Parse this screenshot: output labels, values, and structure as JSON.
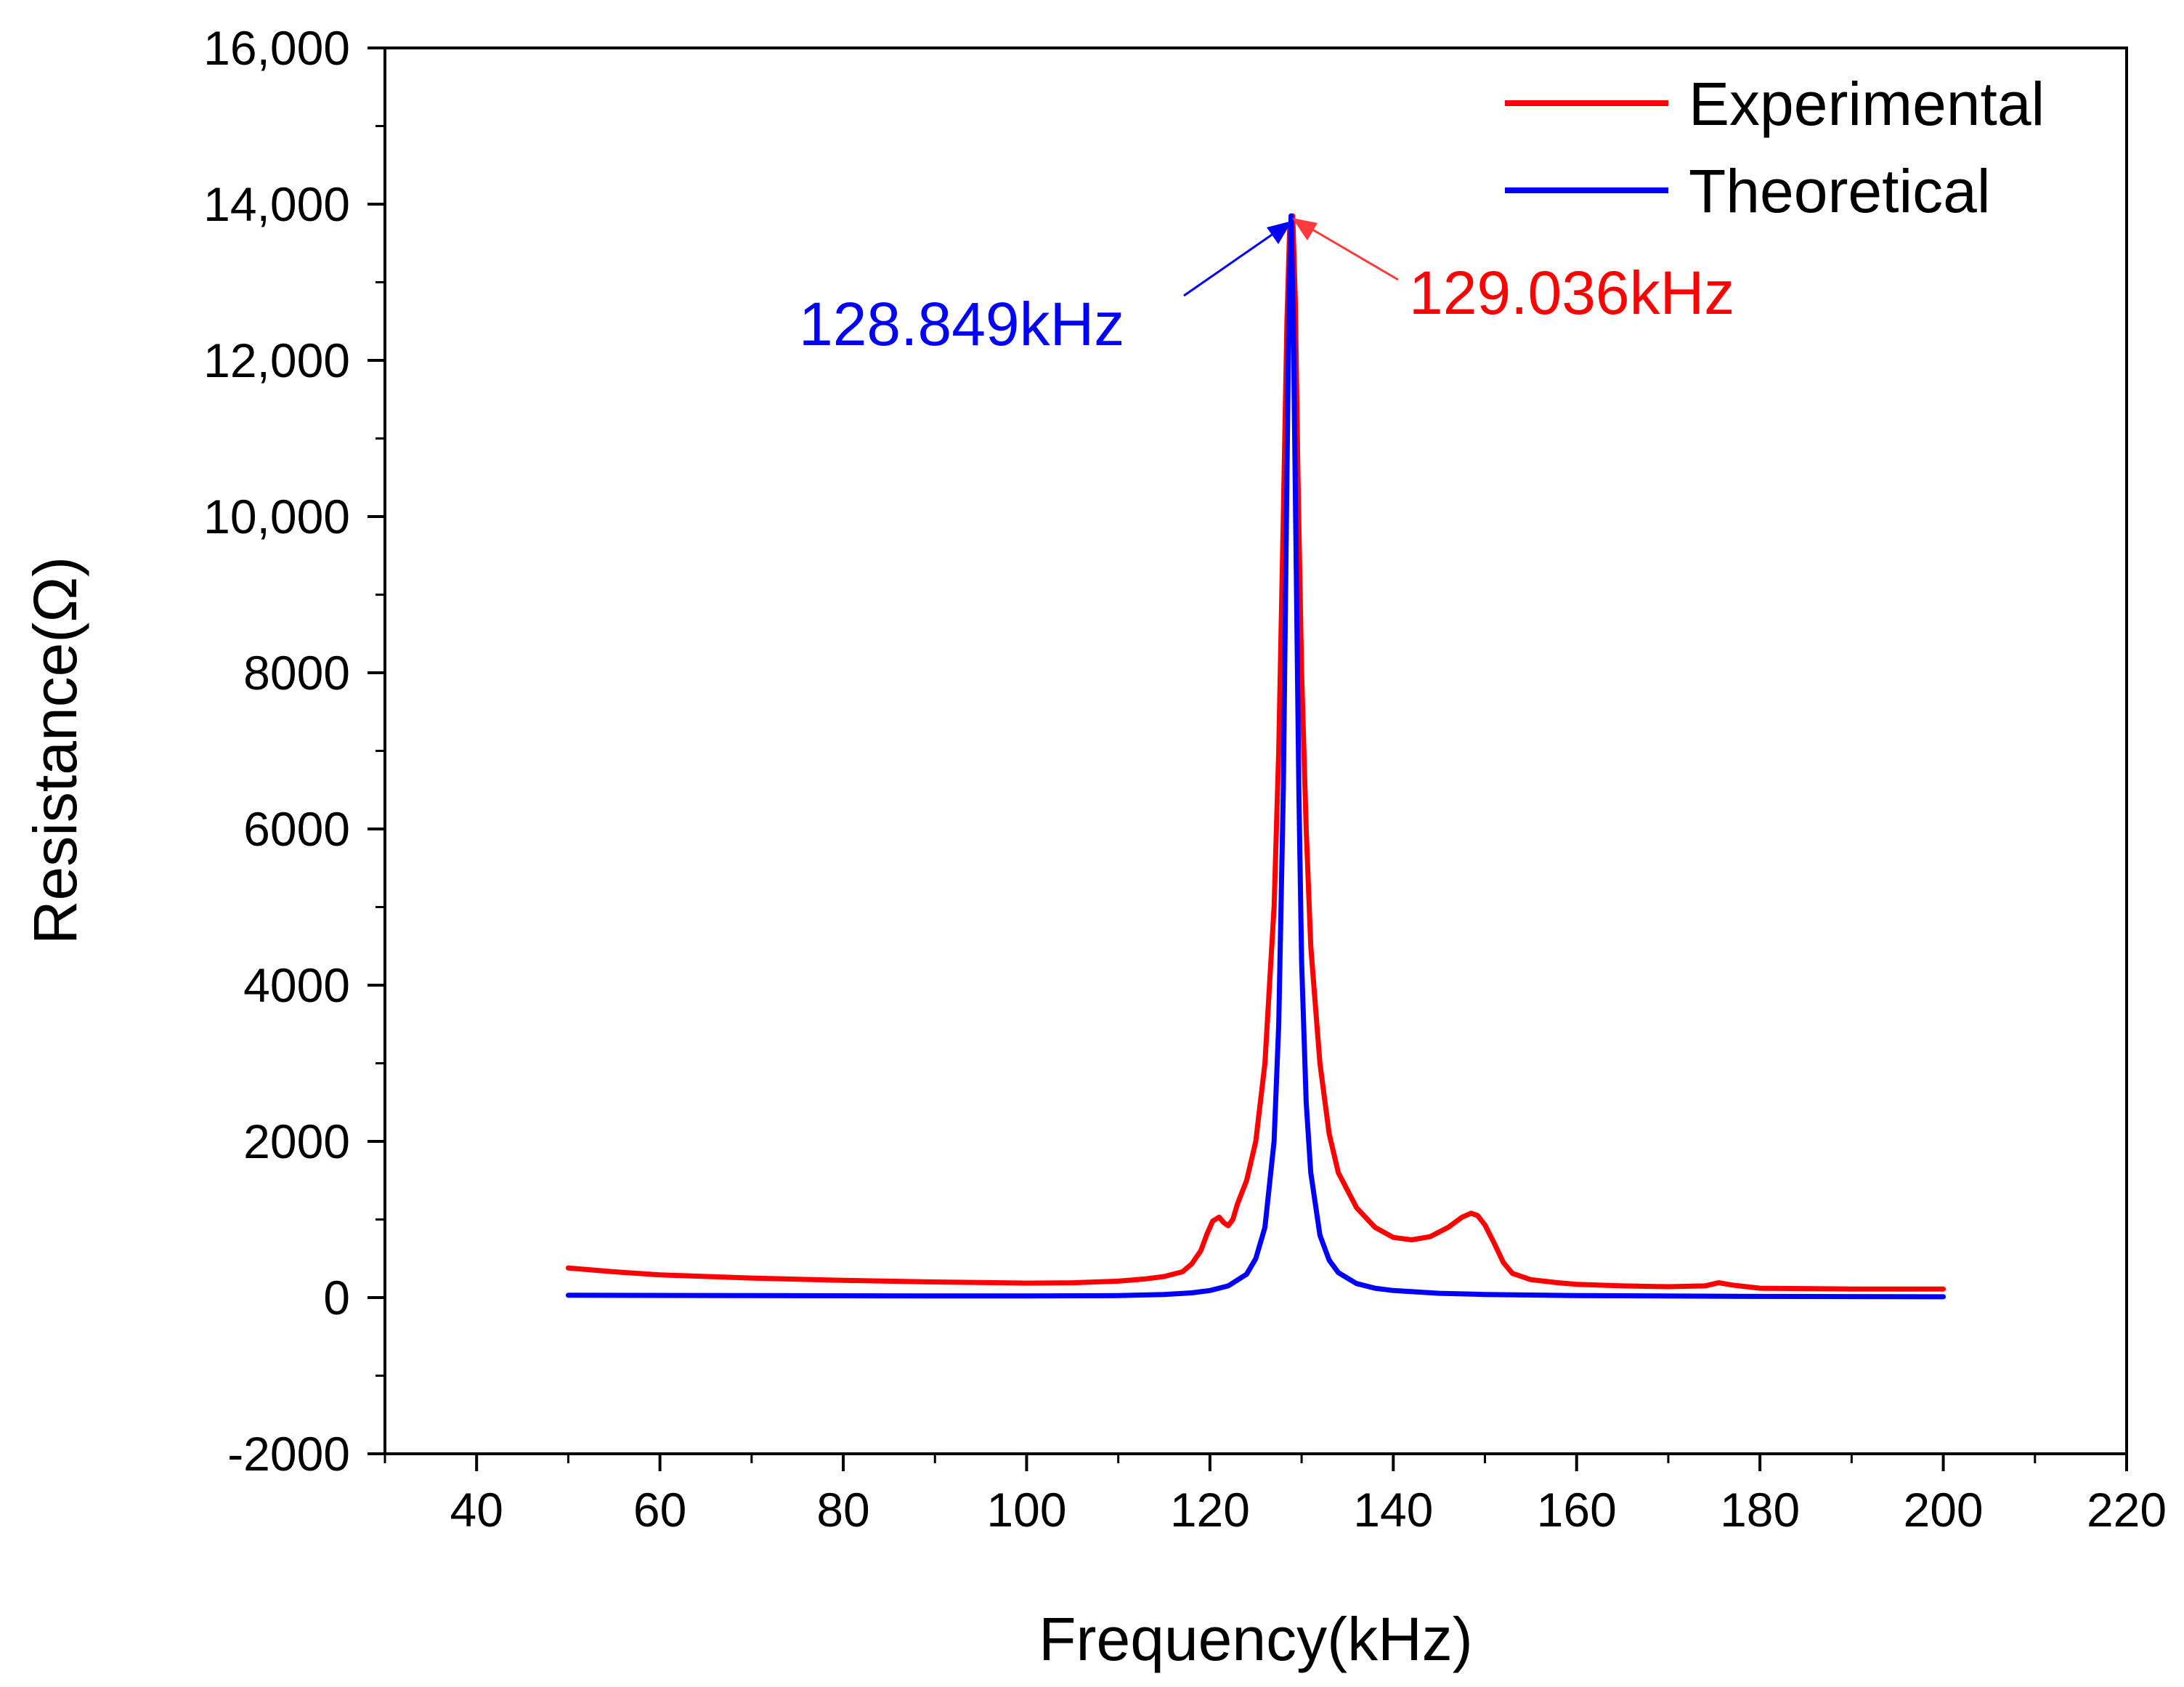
{
  "chart_data": {
    "type": "line",
    "title": "",
    "xlabel": "Frequency(kHz)",
    "ylabel": "Resistance(Ω)",
    "xlim": [
      30,
      220
    ],
    "ylim": [
      -2000,
      16000
    ],
    "x_ticks": [
      40,
      60,
      80,
      100,
      120,
      140,
      160,
      180,
      200,
      220
    ],
    "x_tick_labels": [
      "40",
      "60",
      "80",
      "100",
      "120",
      "140",
      "160",
      "180",
      "200",
      "220"
    ],
    "y_ticks": [
      -2000,
      0,
      2000,
      4000,
      6000,
      8000,
      10000,
      12000,
      14000,
      16000
    ],
    "y_tick_labels": [
      "-2000",
      "0",
      "2000",
      "4000",
      "6000",
      "8000",
      "10,000",
      "12,000",
      "14,000",
      "16,000"
    ],
    "grid": false,
    "legend_position": "top-right",
    "series": [
      {
        "name": "Experimental",
        "color": "#ff0000",
        "x": [
          50,
          55,
          60,
          70,
          80,
          90,
          100,
          105,
          110,
          113,
          115,
          117,
          118,
          119,
          119.7,
          120.3,
          121,
          121.5,
          122,
          122.5,
          123,
          124,
          125,
          126,
          127,
          127.5,
          128,
          128.4,
          128.7,
          129.036,
          129.3,
          129.6,
          130,
          130.5,
          131,
          132,
          133,
          134,
          136,
          138,
          140,
          142,
          144,
          146,
          147.5,
          148.5,
          149.2,
          150,
          151,
          152,
          153,
          155,
          158,
          160,
          165,
          170,
          174,
          175.5,
          177,
          180,
          190,
          200
        ],
        "y": [
          380,
          330,
          290,
          250,
          220,
          200,
          185,
          190,
          210,
          240,
          270,
          330,
          430,
          600,
          820,
          980,
          1030,
          960,
          920,
          1000,
          1200,
          1500,
          2000,
          3000,
          5000,
          7000,
          10000,
          12500,
          13700,
          13850,
          12800,
          10500,
          8000,
          6000,
          4500,
          3000,
          2100,
          1600,
          1150,
          900,
          770,
          740,
          780,
          900,
          1030,
          1080,
          1050,
          930,
          700,
          450,
          310,
          230,
          190,
          170,
          150,
          140,
          150,
          190,
          160,
          120,
          110,
          110
        ]
      },
      {
        "name": "Theoretical",
        "color": "#0000ff",
        "x": [
          50,
          70,
          90,
          100,
          110,
          115,
          118,
          120,
          122,
          124,
          125,
          126,
          127,
          127.5,
          128,
          128.3,
          128.6,
          128.849,
          129.1,
          129.4,
          129.7,
          130,
          130.5,
          131,
          132,
          133,
          134,
          136,
          138,
          140,
          145,
          150,
          160,
          180,
          200
        ],
        "y": [
          30,
          25,
          20,
          20,
          25,
          40,
          60,
          90,
          150,
          300,
          500,
          900,
          2000,
          3500,
          6500,
          9500,
          12500,
          13850,
          12500,
          9500,
          6500,
          4300,
          2500,
          1600,
          800,
          480,
          320,
          180,
          120,
          90,
          55,
          40,
          25,
          15,
          10
        ]
      }
    ],
    "annotations": [
      {
        "text": "128.849kHz",
        "color": "#0000ff",
        "x": 128.849,
        "y": 13850
      },
      {
        "text": "129.036kHz",
        "color": "#ff0000",
        "x": 129.036,
        "y": 13850
      }
    ]
  }
}
